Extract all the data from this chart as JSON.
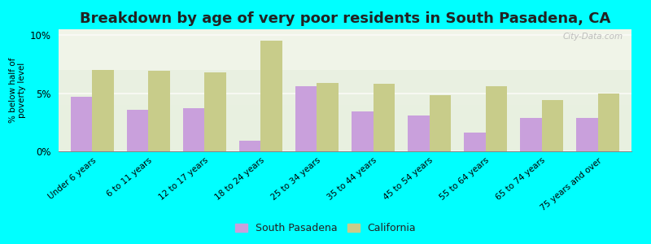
{
  "title": "Breakdown by age of very poor residents in South Pasadena, CA",
  "categories": [
    "Under 6 years",
    "6 to 11 years",
    "12 to 17 years",
    "18 to 24 years",
    "25 to 34 years",
    "35 to 44 years",
    "45 to 54 years",
    "55 to 64 years",
    "65 to 74 years",
    "75 years and over"
  ],
  "south_pasadena": [
    4.7,
    3.6,
    3.7,
    0.9,
    5.6,
    3.4,
    3.1,
    1.6,
    2.9,
    2.9
  ],
  "california": [
    7.0,
    6.9,
    6.8,
    9.5,
    5.9,
    5.8,
    4.8,
    5.6,
    4.4,
    5.0
  ],
  "sp_color": "#c9a0dc",
  "ca_color": "#c8cc8a",
  "ylabel": "% below half of\npoverty level",
  "ylim": [
    0,
    10.5
  ],
  "yticks": [
    0,
    5,
    10
  ],
  "yticklabels": [
    "0%",
    "5%",
    "10%"
  ],
  "background_color": "#00ffff",
  "plot_bg_top": "#f5f5e8",
  "plot_bg_bottom": "#e8f0e0",
  "grid_color": "#ffffff",
  "title_fontsize": 13,
  "watermark": "City-Data.com",
  "legend_sp": "South Pasadena",
  "legend_ca": "California"
}
